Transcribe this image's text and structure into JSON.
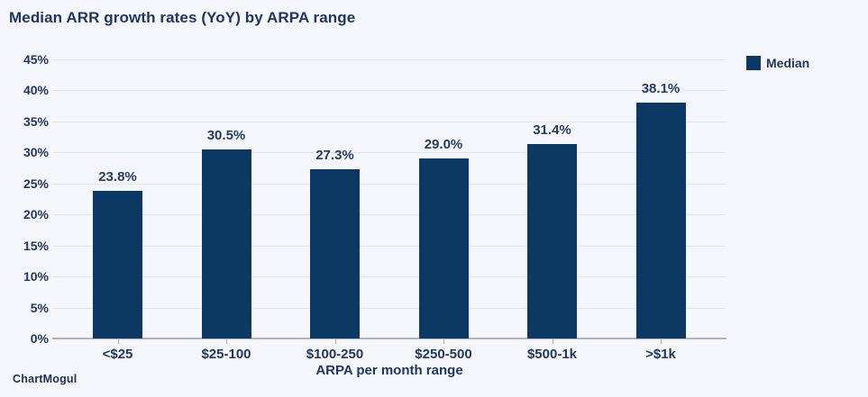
{
  "header": {
    "title": "Median ARR growth rates (YoY) by ARPA range"
  },
  "legend": {
    "label": "Median",
    "color": "#0c3963"
  },
  "footer": {
    "brand": "ChartMogul"
  },
  "chart_data": {
    "type": "bar",
    "title": "Median ARR growth rates (YoY) by ARPA range",
    "categories": [
      "<$25",
      "$25-100",
      "$100-250",
      "$250-500",
      "$500-1k",
      ">$1k"
    ],
    "series": [
      {
        "name": "Median",
        "values": [
          23.8,
          30.5,
          27.3,
          29.0,
          31.4,
          38.1
        ]
      }
    ],
    "value_labels": [
      "23.8%",
      "30.5%",
      "27.3%",
      "29.0%",
      "31.4%",
      "38.1%"
    ],
    "xlabel": "ARPA per month range",
    "ylabel": "",
    "ylim": [
      0,
      45
    ],
    "ytick_step": 5,
    "ytick_labels": [
      "0%",
      "5%",
      "10%",
      "15%",
      "20%",
      "25%",
      "30%",
      "35%",
      "40%",
      "45%"
    ],
    "grid": true,
    "legend_position": "top-right",
    "bar_color": "#0c3963",
    "background_color": "#f5f6fb"
  }
}
